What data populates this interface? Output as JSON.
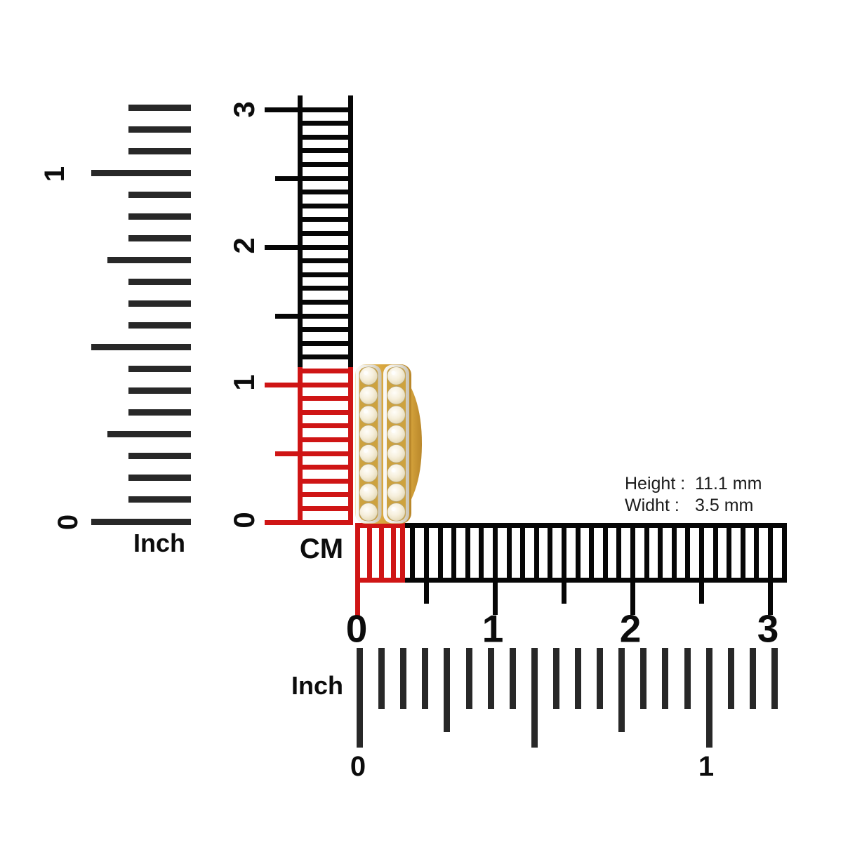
{
  "diagram": {
    "item": {
      "name": "gold double-row diamond hoop earring",
      "icon": "earring-photo"
    },
    "measurements": {
      "height_label": "Height :",
      "height_value": "11.1 mm",
      "width_label": "Widht :",
      "width_value": "3.5 mm"
    },
    "rulers": {
      "inch_left": {
        "unit": "Inch",
        "numbers": [
          "0",
          "1"
        ]
      },
      "cm_vertical": {
        "unit": "CM",
        "numbers": [
          "0",
          "1",
          "2",
          "3"
        ]
      },
      "cm_horizontal": {
        "numbers": [
          "0",
          "1",
          "2",
          "3"
        ]
      },
      "inch_bottom": {
        "unit": "Inch",
        "numbers": [
          "0",
          "1"
        ]
      }
    },
    "colors": {
      "highlight_red": "#cf1515",
      "ruler_black": "#060606",
      "inch_ruler_gray": "#282828",
      "gold": "#d8a63e",
      "diamond": "#f6efdc"
    }
  }
}
